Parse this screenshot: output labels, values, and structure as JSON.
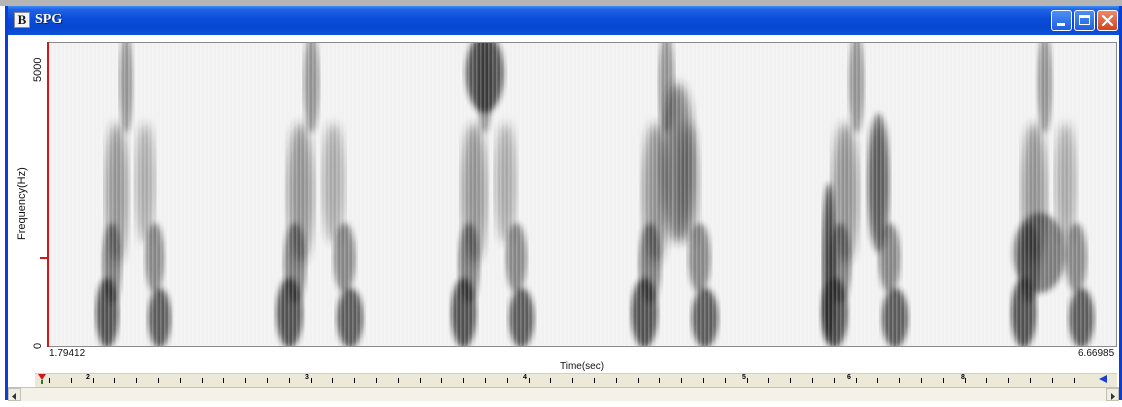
{
  "window": {
    "title": "SPG",
    "icon_letter": "B"
  },
  "spectrogram": {
    "y_label": "Frequency(Hz)",
    "y_ticks": [
      "5000",
      "0"
    ],
    "x_label": "Time(sec)",
    "x_start": "1.79412",
    "x_end": "6.66985"
  },
  "timeline": {
    "labels": [
      "2",
      "3",
      "4",
      "5",
      "6",
      "8"
    ]
  },
  "icons": {
    "minimize": "minimize-icon",
    "maximize": "maximize-icon",
    "close": "close-icon",
    "scroll_left": "arrow-left-icon",
    "scroll_right": "arrow-right-icon",
    "marker_start": "marker-red-icon",
    "marker_end": "marker-blue-icon"
  },
  "colors": {
    "title_bar": "#0a4bd9",
    "close_button": "#d2431f",
    "axis_marker": "#cc1a1a",
    "spectrogram_bg": "#f1f1f1"
  }
}
